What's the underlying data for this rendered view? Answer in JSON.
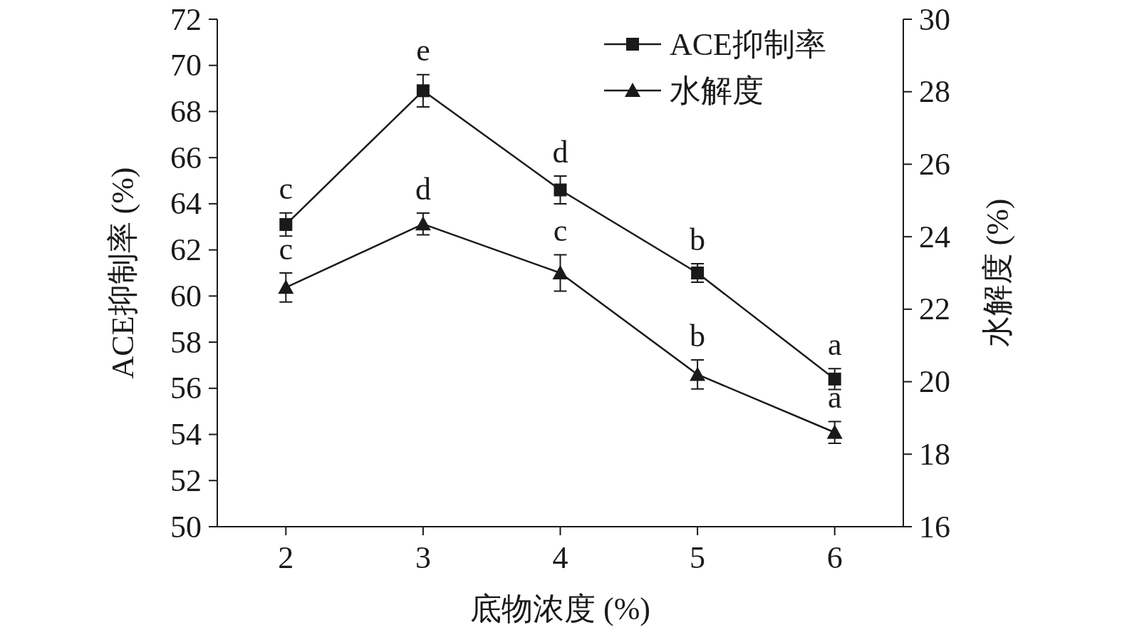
{
  "chart_data": {
    "type": "line",
    "xlabel": "底物浓度 (%)",
    "ylabel": "ACE抑制率 (%)",
    "y2label": "水解度 (%)",
    "x": [
      2,
      3,
      4,
      5,
      6
    ],
    "xlim": [
      1.5,
      6.5
    ],
    "xticks": [
      2,
      3,
      4,
      5,
      6
    ],
    "ylim": [
      50,
      72
    ],
    "yticks": [
      50,
      52,
      54,
      56,
      58,
      60,
      62,
      64,
      66,
      68,
      70,
      72
    ],
    "y2lim": [
      16,
      30
    ],
    "y2ticks": [
      16,
      18,
      20,
      22,
      24,
      26,
      28,
      30
    ],
    "legend": "top right",
    "grid": false,
    "line_style": "solid",
    "series": [
      {
        "name": "ACE抑制率",
        "color": "#1a1a1a",
        "marker": "square",
        "values": [
          63.1,
          68.9,
          64.6,
          61.0,
          56.4
        ],
        "errors": [
          0.5,
          0.7,
          0.6,
          0.4,
          0.45
        ]
      },
      {
        "name": "水解度",
        "color": "#1a1a1a",
        "marker": "triangle",
        "axis": "y2",
        "values": [
          22.6,
          24.35,
          23.0,
          20.2,
          18.6
        ],
        "errors": [
          0.4,
          0.3,
          0.5,
          0.4,
          0.3
        ]
      }
    ],
    "annotations": [
      "c",
      "e",
      "d",
      "b",
      "a",
      "c",
      "d",
      "c",
      "b",
      "a"
    ]
  }
}
